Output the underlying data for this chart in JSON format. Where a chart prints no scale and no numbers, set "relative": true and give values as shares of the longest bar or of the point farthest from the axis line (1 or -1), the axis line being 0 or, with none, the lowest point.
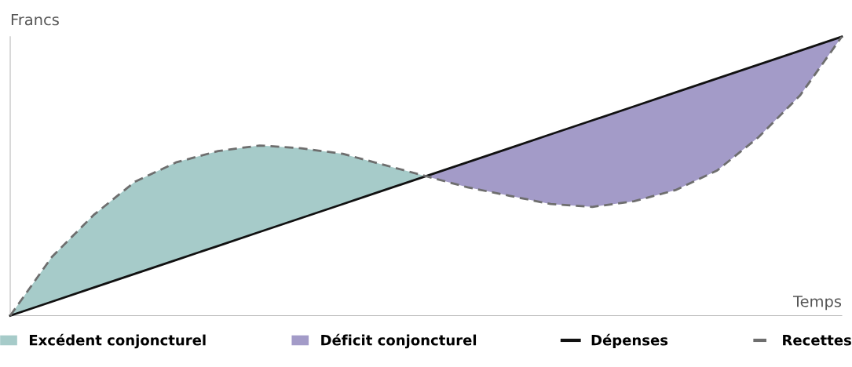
{
  "chart_data": {
    "type": "line",
    "relative": true,
    "xlabel": "Temps",
    "ylabel": "Francs",
    "categories": [
      null,
      null,
      null,
      null,
      null,
      null,
      null,
      null,
      null,
      null,
      null,
      null,
      null,
      null,
      null,
      null,
      null,
      null,
      null,
      null,
      null
    ],
    "legend": "bottom",
    "series": [
      {
        "name": "Excédent conjoncturel",
        "type": "area",
        "color": "#a6cbc9",
        "values": [
          0,
          0.21,
          0.36,
          0.48,
          0.55,
          0.59,
          0.61,
          0.6,
          0.58,
          0.54,
          0.5,
          null,
          null,
          null,
          null,
          null,
          null,
          null,
          null,
          null,
          null
        ]
      },
      {
        "name": "Déficit conjoncturel",
        "type": "area",
        "color": "#a39bc8",
        "values": [
          null,
          null,
          null,
          null,
          null,
          null,
          null,
          null,
          null,
          null,
          0.5,
          0.55,
          0.6,
          0.65,
          0.7,
          0.75,
          0.8,
          0.85,
          0.9,
          0.95,
          1
        ]
      },
      {
        "name": "Dépenses",
        "color": "#111111",
        "line_style": "solid",
        "values": [
          0,
          0.05,
          0.1,
          0.15,
          0.2,
          0.25,
          0.3,
          0.35,
          0.4,
          0.45,
          0.5,
          0.55,
          0.6,
          0.65,
          0.7,
          0.75,
          0.8,
          0.85,
          0.9,
          0.95,
          1
        ]
      },
      {
        "name": "Recettes",
        "color": "#6e6e6e",
        "line_style": "dashed",
        "values": [
          0,
          0.21,
          0.36,
          0.48,
          0.55,
          0.59,
          0.61,
          0.6,
          0.58,
          0.54,
          0.5,
          0.46,
          0.43,
          0.4,
          0.39,
          0.41,
          0.45,
          0.52,
          0.64,
          0.79,
          1
        ]
      }
    ]
  }
}
